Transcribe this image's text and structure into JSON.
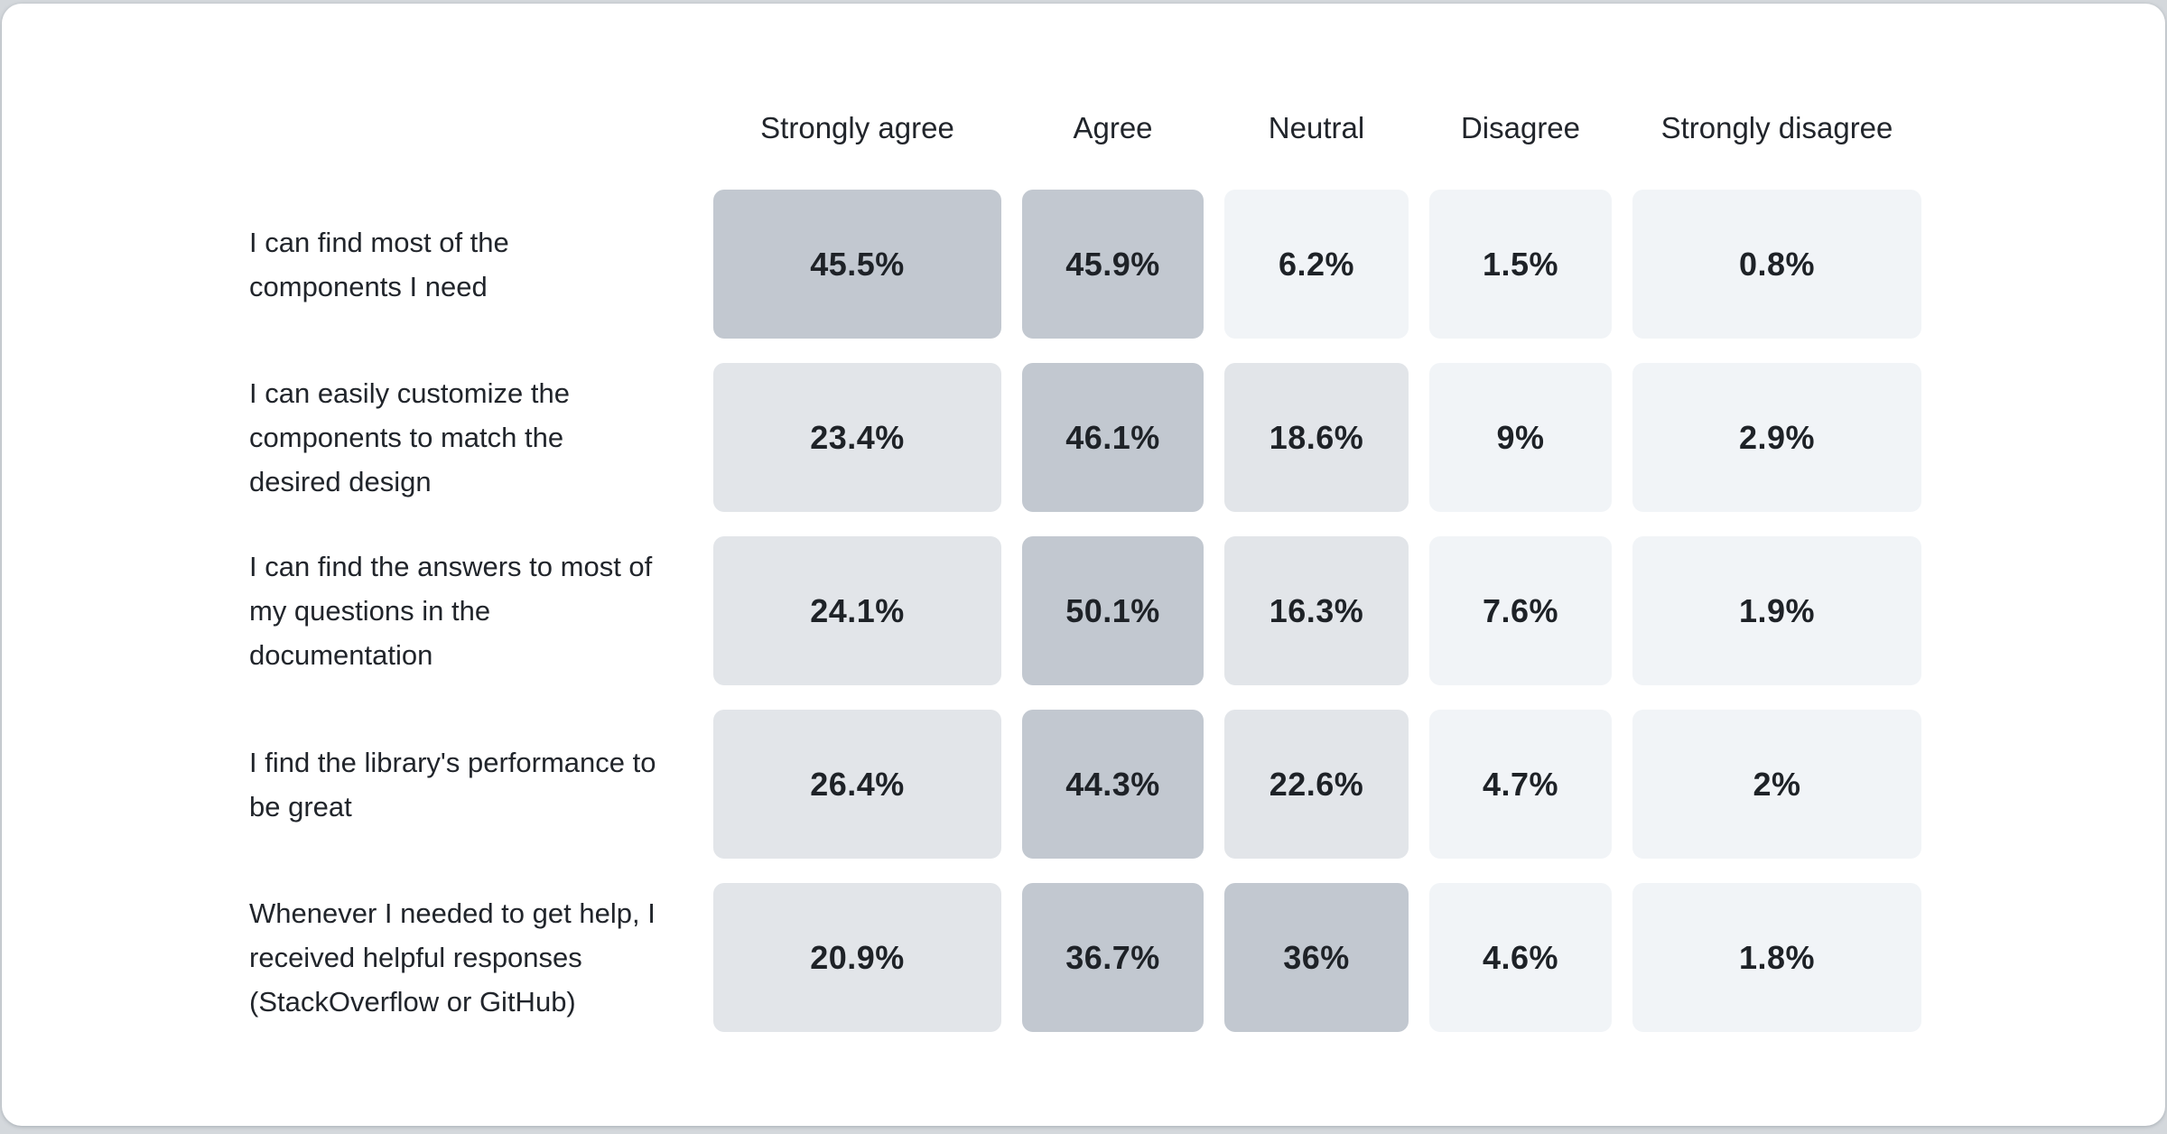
{
  "page": {
    "background_color": "#d4d8dc",
    "card_color": "#ffffff",
    "text_color": "#21252b"
  },
  "chart_data": {
    "type": "heatmap",
    "title": "",
    "columns": [
      "Strongly agree",
      "Agree",
      "Neutral",
      "Disagree",
      "Strongly disagree"
    ],
    "rows": [
      {
        "label": "I can find most of the components I need",
        "values": [
          45.5,
          45.9,
          6.2,
          1.5,
          0.8
        ]
      },
      {
        "label": "I can easily customize the components to match the desired design",
        "values": [
          23.4,
          46.1,
          18.6,
          9,
          2.9
        ]
      },
      {
        "label": "I can find the answers to most of my questions in the documentation",
        "values": [
          24.1,
          50.1,
          16.3,
          7.6,
          1.9
        ]
      },
      {
        "label": "I find the library's performance to be great",
        "values": [
          26.4,
          44.3,
          22.6,
          4.7,
          2
        ]
      },
      {
        "label": "Whenever I needed to get help, I received helpful responses (StackOverflow or GitHub)",
        "values": [
          20.9,
          36.7,
          36,
          4.6,
          1.8
        ]
      }
    ],
    "value_suffix": "%",
    "color_scale": {
      "description": "higher percentage = darker cell",
      "bins": [
        {
          "min": 30,
          "color": "#c2c8d0"
        },
        {
          "min": 10,
          "color": "#e2e5e9"
        },
        {
          "min": 0,
          "color": "#f1f4f7"
        }
      ]
    },
    "layout": {
      "legend_position": "none",
      "grid": "off",
      "value_labels": "inside-cells"
    }
  }
}
